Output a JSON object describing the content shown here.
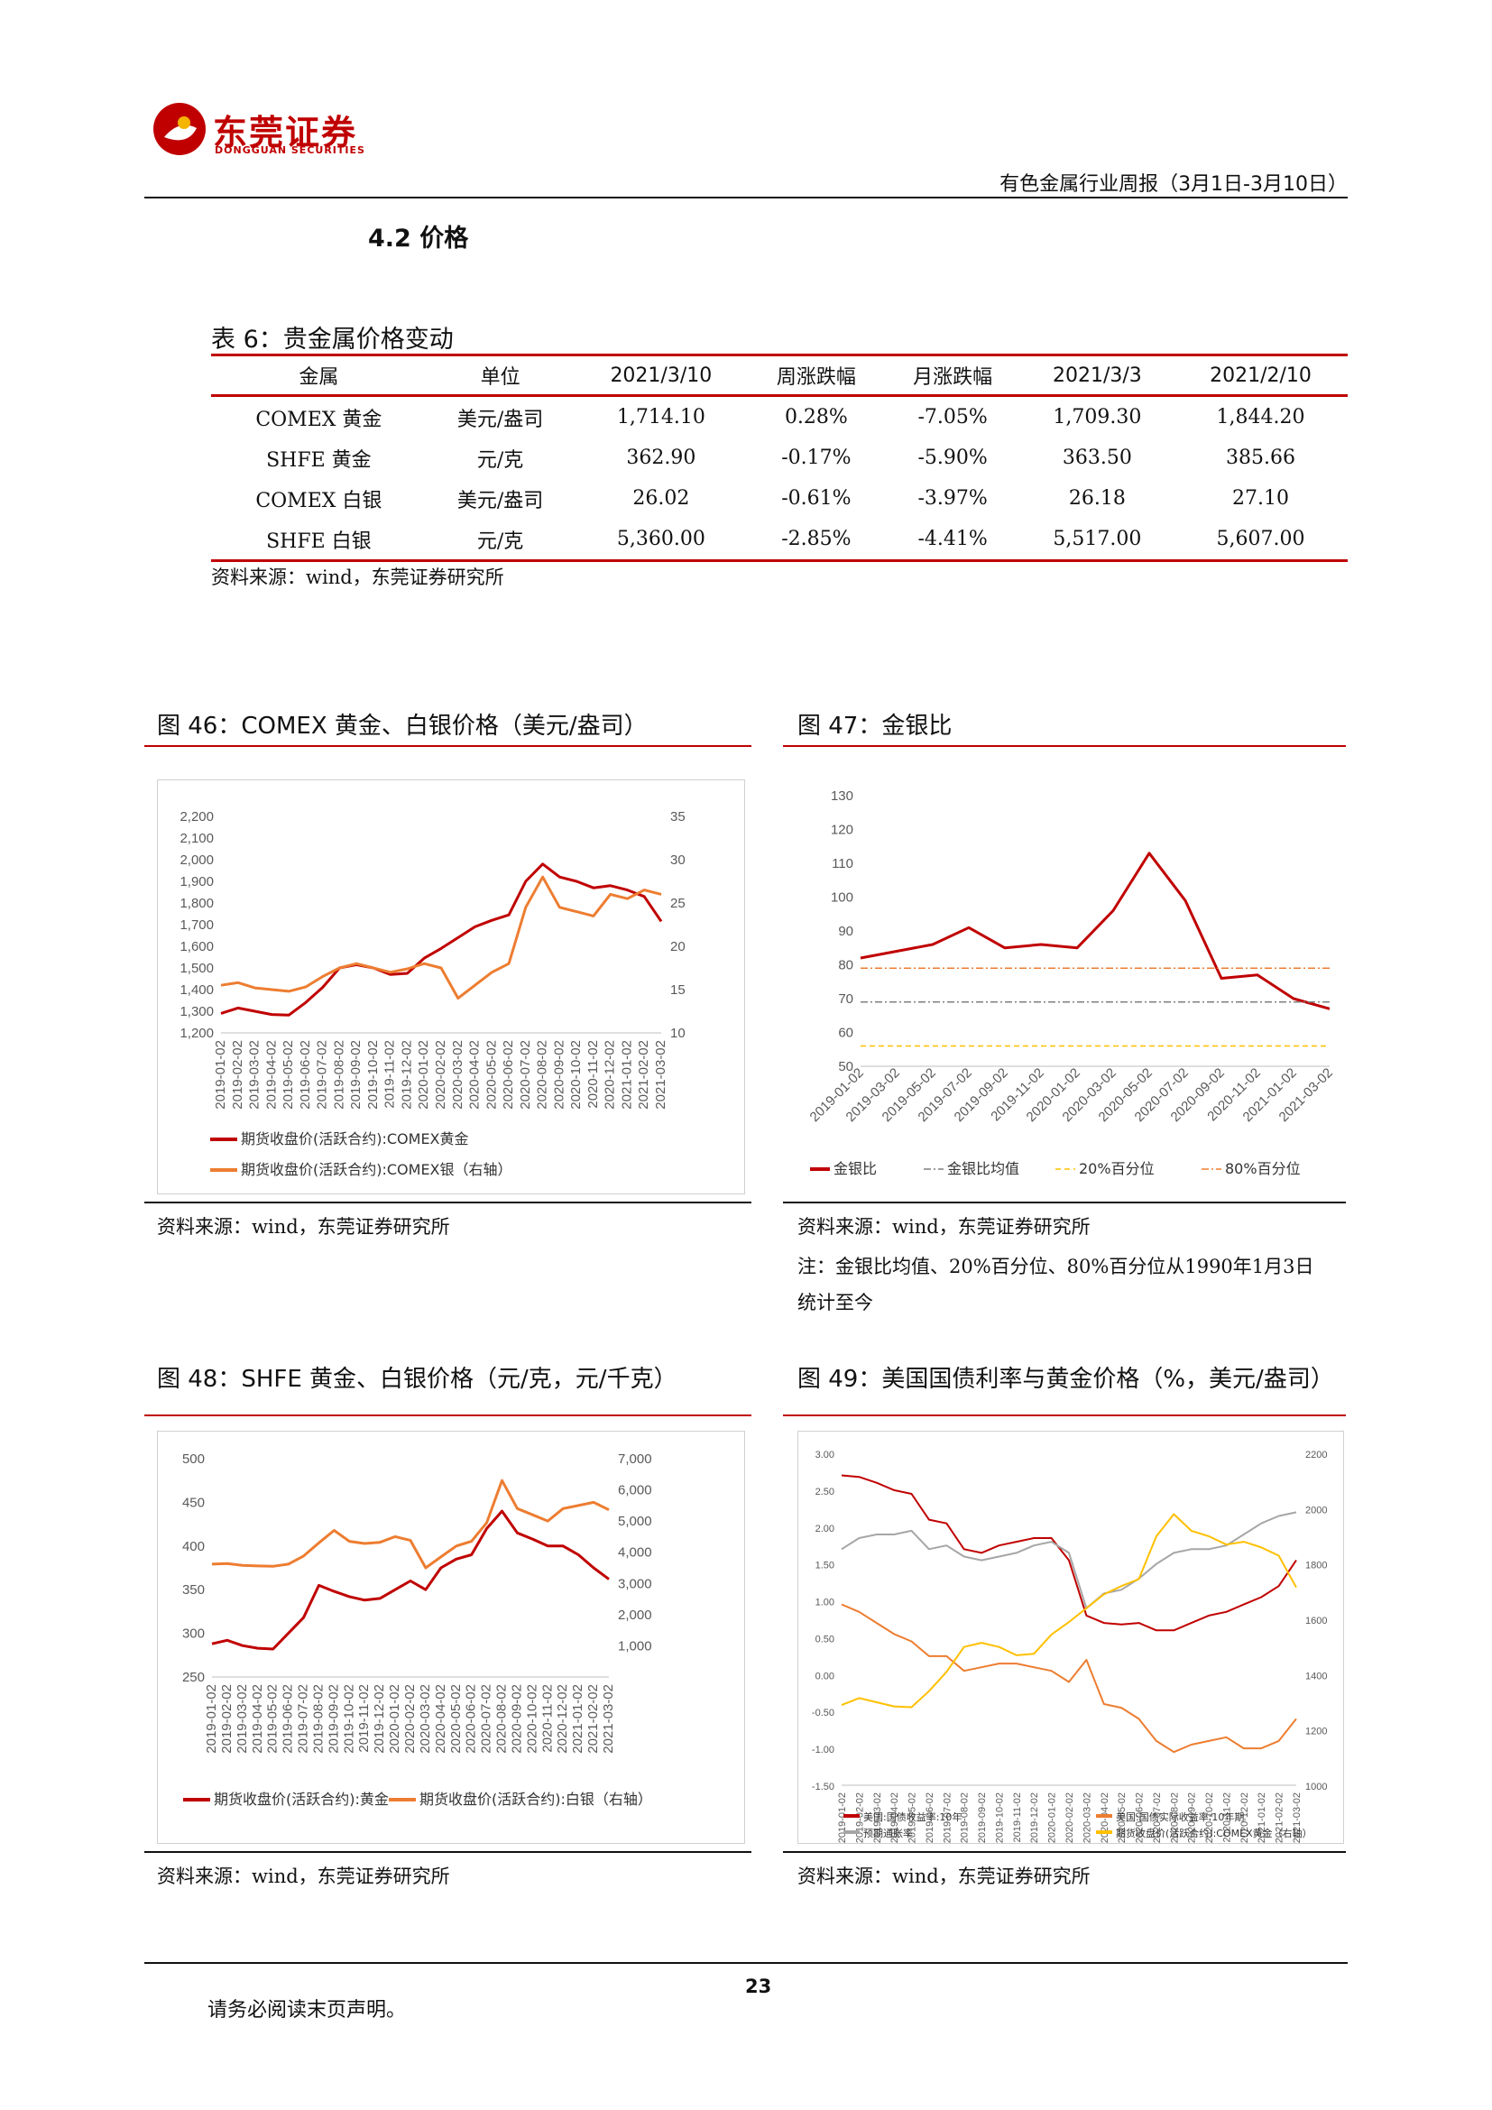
{
  "header": {
    "logo_cn": "东莞证券",
    "logo_en": "DONGGUAN SECURITIES",
    "report_title": "有色金属行业周报（3月1日-3月10日）"
  },
  "section_title": "4.2 价格",
  "table6": {
    "caption": "表 6：贵金属价格变动",
    "headers": [
      "金属",
      "单位",
      "2021/3/10",
      "周涨跌幅",
      "月涨跌幅",
      "2021/3/3",
      "2021/2/10"
    ],
    "rows": [
      [
        "COMEX 黄金",
        "美元/盎司",
        "1,714.10",
        "0.28%",
        "-7.05%",
        "1,709.30",
        "1,844.20"
      ],
      [
        "SHFE 黄金",
        "元/克",
        "362.90",
        "-0.17%",
        "-5.90%",
        "363.50",
        "385.66"
      ],
      [
        "COMEX 白银",
        "美元/盎司",
        "26.02",
        "-0.61%",
        "-3.97%",
        "26.18",
        "27.10"
      ],
      [
        "SHFE 白银",
        "元/克",
        "5,360.00",
        "-2.85%",
        "-4.41%",
        "5,517.00",
        "5,607.00"
      ]
    ],
    "source": "资料来源：wind，东莞证券研究所"
  },
  "figures": {
    "fig46": {
      "caption": "图 46：COMEX 黄金、白银价格（美元/盎司）",
      "source": "资料来源：wind，东莞证券研究所"
    },
    "fig47": {
      "caption": "图 47：金银比",
      "source": "资料来源：wind，东莞证券研究所",
      "note": [
        "注：金银比均值、20%百分位、80%百分位从1990年1月3日",
        "统计至今"
      ]
    },
    "fig48": {
      "caption": "图 48：SHFE 黄金、白银价格（元/克，元/千克）",
      "source": "资料来源：wind，东莞证券研究所"
    },
    "fig49": {
      "caption": "图 49：美国国债利率与黄金价格（%，美元/盎司）",
      "source": "资料来源：wind，东莞证券研究所"
    }
  },
  "chart_data": [
    {
      "id": "fig46",
      "type": "line",
      "x": [
        "2019-01-02",
        "2019-02-02",
        "2019-03-02",
        "2019-04-02",
        "2019-05-02",
        "2019-06-02",
        "2019-07-02",
        "2019-08-02",
        "2019-09-02",
        "2019-10-02",
        "2019-11-02",
        "2019-12-02",
        "2020-01-02",
        "2020-02-02",
        "2020-03-02",
        "2020-04-02",
        "2020-05-02",
        "2020-06-02",
        "2020-07-02",
        "2020-08-02",
        "2020-09-02",
        "2020-10-02",
        "2020-11-02",
        "2020-12-02",
        "2021-01-02",
        "2021-02-02",
        "2021-03-02"
      ],
      "y_left_ticks": [
        "2,200",
        "2,100",
        "2,000",
        "1,900",
        "1,800",
        "1,700",
        "1,600",
        "1,500",
        "1,400",
        "1,300",
        "1,200"
      ],
      "y_right_ticks": [
        "35",
        "30",
        "25",
        "20",
        "15",
        "10"
      ],
      "ylim_left": [
        1200,
        2200
      ],
      "ylim_right": [
        10,
        35
      ],
      "grid": false,
      "legend_position": "bottom",
      "series": [
        {
          "name": "期货收盘价(活跃合约):COMEX黄金",
          "color": "#c00000",
          "axis": "left",
          "values": [
            1290,
            1315,
            1300,
            1285,
            1282,
            1340,
            1410,
            1500,
            1515,
            1500,
            1470,
            1475,
            1545,
            1590,
            1640,
            1690,
            1720,
            1745,
            1900,
            1980,
            1920,
            1900,
            1870,
            1880,
            1860,
            1830,
            1715
          ]
        },
        {
          "name": "期货收盘价(活跃合约):COMEX银（右轴）",
          "color": "#ed7d31",
          "axis": "right",
          "values": [
            15.5,
            15.8,
            15.2,
            15.0,
            14.8,
            15.3,
            16.5,
            17.5,
            18.0,
            17.5,
            17.0,
            17.4,
            18.0,
            17.5,
            14.0,
            15.5,
            17.0,
            18.0,
            24.5,
            28.0,
            24.5,
            24.0,
            23.5,
            26.0,
            25.5,
            26.5,
            26.0
          ]
        }
      ]
    },
    {
      "id": "fig47",
      "type": "line",
      "x": [
        "2019-01-02",
        "2019-03-02",
        "2019-05-02",
        "2019-07-02",
        "2019-09-02",
        "2019-11-02",
        "2020-01-02",
        "2020-03-02",
        "2020-05-02",
        "2020-07-02",
        "2020-09-02",
        "2020-11-02",
        "2021-01-02",
        "2021-03-02"
      ],
      "y_ticks": [
        "130",
        "120",
        "110",
        "100",
        "90",
        "80",
        "70",
        "60",
        "50"
      ],
      "ylim": [
        50,
        130
      ],
      "grid": false,
      "legend_position": "bottom",
      "series": [
        {
          "name": "金银比",
          "color": "#c00000",
          "style": "solid",
          "values": [
            82,
            84,
            86,
            91,
            85,
            86,
            85,
            96,
            113,
            99,
            76,
            77,
            70,
            67
          ]
        },
        {
          "name": "金银比均值",
          "color": "#7f7f7f",
          "style": "dash-dot",
          "values": [
            69,
            69,
            69,
            69,
            69,
            69,
            69,
            69,
            69,
            69,
            69,
            69,
            69,
            69
          ]
        },
        {
          "name": "20%百分位",
          "color": "#ffc000",
          "style": "dash",
          "values": [
            56,
            56,
            56,
            56,
            56,
            56,
            56,
            56,
            56,
            56,
            56,
            56,
            56,
            56
          ]
        },
        {
          "name": "80%百分位",
          "color": "#ed7d31",
          "style": "dash-dot",
          "values": [
            79,
            79,
            79,
            79,
            79,
            79,
            79,
            79,
            79,
            79,
            79,
            79,
            79,
            79
          ]
        }
      ]
    },
    {
      "id": "fig48",
      "type": "line",
      "x": [
        "2019-01-02",
        "2019-02-02",
        "2019-03-02",
        "2019-04-02",
        "2019-05-02",
        "2019-06-02",
        "2019-07-02",
        "2019-08-02",
        "2019-09-02",
        "2019-10-02",
        "2019-11-02",
        "2019-12-02",
        "2020-01-02",
        "2020-02-02",
        "2020-03-02",
        "2020-04-02",
        "2020-05-02",
        "2020-06-02",
        "2020-07-02",
        "2020-08-02",
        "2020-09-02",
        "2020-10-02",
        "2020-11-02",
        "2020-12-02",
        "2021-01-02",
        "2021-02-02",
        "2021-03-02"
      ],
      "y_left_ticks": [
        "500",
        "450",
        "400",
        "350",
        "300",
        "250"
      ],
      "y_right_ticks": [
        "7,000",
        "6,000",
        "5,000",
        "4,000",
        "3,000",
        "2,000",
        "1,000"
      ],
      "ylim_left": [
        250,
        500
      ],
      "ylim_right": [
        0,
        7000
      ],
      "grid": false,
      "legend_position": "bottom",
      "series": [
        {
          "name": "期货收盘价(活跃合约):黄金",
          "color": "#c00000",
          "axis": "left",
          "values": [
            288,
            292,
            286,
            283,
            282,
            300,
            318,
            355,
            348,
            342,
            338,
            340,
            350,
            360,
            350,
            375,
            385,
            390,
            420,
            440,
            415,
            408,
            400,
            400,
            390,
            375,
            362
          ]
        },
        {
          "name": "期货收盘价(活跃合约):白银（右轴）",
          "color": "#ed7d31",
          "axis": "right",
          "values": [
            3620,
            3640,
            3580,
            3560,
            3550,
            3620,
            3880,
            4300,
            4700,
            4350,
            4280,
            4320,
            4500,
            4380,
            3500,
            3850,
            4200,
            4350,
            4950,
            6300,
            5400,
            5200,
            5000,
            5400,
            5500,
            5600,
            5360
          ]
        }
      ]
    },
    {
      "id": "fig49",
      "type": "line",
      "x": [
        "2019-01-02",
        "2019-02-02",
        "2019-03-02",
        "2019-04-02",
        "2019-05-02",
        "2019-06-02",
        "2019-07-02",
        "2019-08-02",
        "2019-09-02",
        "2019-10-02",
        "2019-11-02",
        "2019-12-02",
        "2020-01-02",
        "2020-02-02",
        "2020-03-02",
        "2020-04-02",
        "2020-05-02",
        "2020-06-02",
        "2020-07-02",
        "2020-08-02",
        "2020-09-02",
        "2020-10-02",
        "2020-11-02",
        "2020-12-02",
        "2021-01-02",
        "2021-02-02",
        "2021-03-02"
      ],
      "y_left_ticks": [
        "3.00",
        "2.50",
        "2.00",
        "1.50",
        "1.00",
        "0.50",
        "0.00",
        "-0.50",
        "-1.00",
        "-1.50"
      ],
      "y_right_ticks": [
        "2200",
        "2000",
        "1800",
        "1600",
        "1400",
        "1200",
        "1000"
      ],
      "ylim_left": [
        -1.5,
        3.0
      ],
      "ylim_right": [
        1000,
        2200
      ],
      "grid": false,
      "legend_position": "bottom",
      "series": [
        {
          "name": "美国:国债收益率:10年",
          "color": "#c00000",
          "axis": "left",
          "values": [
            2.7,
            2.68,
            2.6,
            2.5,
            2.45,
            2.1,
            2.05,
            1.7,
            1.65,
            1.75,
            1.8,
            1.85,
            1.85,
            1.55,
            0.8,
            0.7,
            0.68,
            0.7,
            0.6,
            0.6,
            0.7,
            0.8,
            0.85,
            0.95,
            1.05,
            1.2,
            1.55
          ]
        },
        {
          "name": "美国:国债实际收益率:10年期",
          "color": "#ed7d31",
          "axis": "left",
          "values": [
            0.95,
            0.85,
            0.7,
            0.55,
            0.45,
            0.25,
            0.25,
            0.05,
            0.1,
            0.15,
            0.15,
            0.1,
            0.05,
            -0.1,
            0.2,
            -0.4,
            -0.45,
            -0.6,
            -0.9,
            -1.05,
            -0.95,
            -0.9,
            -0.85,
            -1.0,
            -1.0,
            -0.9,
            -0.6
          ]
        },
        {
          "name": "预期通胀率",
          "color": "#a6a6a6",
          "axis": "left",
          "values": [
            1.7,
            1.85,
            1.9,
            1.9,
            1.95,
            1.7,
            1.75,
            1.6,
            1.55,
            1.6,
            1.65,
            1.75,
            1.8,
            1.65,
            0.9,
            1.1,
            1.15,
            1.3,
            1.5,
            1.65,
            1.7,
            1.7,
            1.75,
            1.9,
            2.05,
            2.15,
            2.2
          ]
        },
        {
          "name": "期货收盘价(活跃合约):COMEX黄金（右轴）",
          "color": "#ffc000",
          "axis": "right",
          "values": [
            1290,
            1315,
            1300,
            1285,
            1282,
            1340,
            1410,
            1500,
            1515,
            1500,
            1470,
            1475,
            1545,
            1590,
            1640,
            1690,
            1720,
            1745,
            1900,
            1980,
            1920,
            1900,
            1870,
            1880,
            1860,
            1830,
            1715
          ]
        }
      ]
    }
  ],
  "footer": {
    "page_number": "23",
    "disclaimer": "请务必阅读末页声明。"
  }
}
